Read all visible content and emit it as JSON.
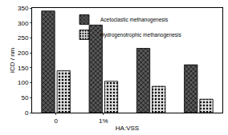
{
  "chart_data": {
    "type": "bar",
    "x_label": "HA:VSS",
    "y_label": "ICD / nm",
    "categories": [
      "0",
      "1%",
      null,
      null
    ],
    "series": [
      {
        "name": "Acetoclastic methanogenesis",
        "color": "#5a5a5a",
        "values": [
          340,
          293,
          215,
          160
        ]
      },
      {
        "name": "Hydrogenotrophic methanogenesis",
        "color": "#e0e0e0",
        "values": [
          140,
          105,
          88,
          45
        ]
      }
    ],
    "ylim": [
      0,
      350
    ],
    "yticks": [
      0,
      50,
      100,
      150,
      200,
      250,
      300,
      350
    ],
    "grid": false,
    "legend": "top"
  }
}
